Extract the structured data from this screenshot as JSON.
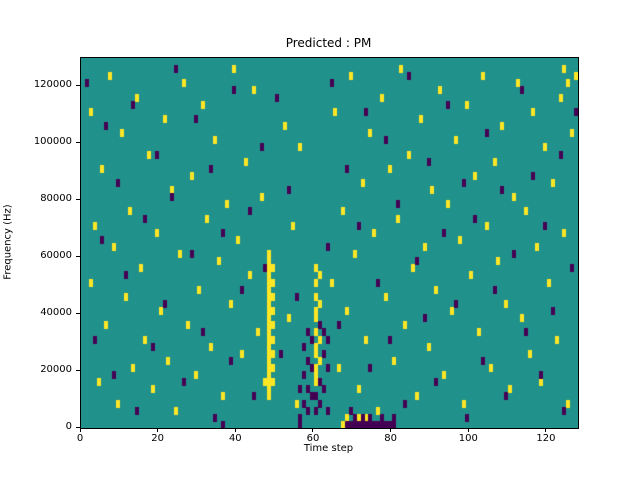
{
  "chart_data": {
    "type": "heatmap",
    "title": "Predicted : PM",
    "xlabel": "Time step",
    "ylabel": "Frequency (Hz)",
    "x_range": [
      0,
      128
    ],
    "y_range": [
      0,
      130000
    ],
    "x_ticks": [
      0,
      20,
      40,
      60,
      80,
      100,
      120
    ],
    "y_ticks": [
      0,
      20000,
      40000,
      60000,
      80000,
      100000,
      120000
    ],
    "grid": false,
    "legend": "none",
    "colors": {
      "background": "#21918c",
      "high": "#fde725",
      "low": "#440154"
    },
    "grid_cols": 128,
    "grid_rows": 52,
    "cells_high": [
      [
        2,
        44
      ],
      [
        2,
        20
      ],
      [
        3,
        28
      ],
      [
        4,
        6
      ],
      [
        5,
        36
      ],
      [
        6,
        14
      ],
      [
        7,
        49
      ],
      [
        8,
        25
      ],
      [
        9,
        3
      ],
      [
        10,
        41
      ],
      [
        11,
        18
      ],
      [
        12,
        30
      ],
      [
        13,
        8
      ],
      [
        14,
        46
      ],
      [
        15,
        22
      ],
      [
        16,
        12
      ],
      [
        17,
        38
      ],
      [
        18,
        5
      ],
      [
        19,
        27
      ],
      [
        20,
        16
      ],
      [
        21,
        43
      ],
      [
        22,
        9
      ],
      [
        23,
        33
      ],
      [
        24,
        2
      ],
      [
        25,
        24
      ],
      [
        26,
        48
      ],
      [
        27,
        14
      ],
      [
        28,
        35
      ],
      [
        29,
        7
      ],
      [
        30,
        19
      ],
      [
        31,
        45
      ],
      [
        32,
        29
      ],
      [
        33,
        11
      ],
      [
        34,
        40
      ],
      [
        35,
        23
      ],
      [
        36,
        4
      ],
      [
        37,
        31
      ],
      [
        38,
        17
      ],
      [
        39,
        50
      ],
      [
        40,
        26
      ],
      [
        41,
        10
      ],
      [
        42,
        37
      ],
      [
        43,
        21
      ],
      [
        44,
        47
      ],
      [
        45,
        13
      ],
      [
        46,
        32
      ],
      [
        47,
        6
      ],
      [
        48,
        4
      ],
      [
        48,
        5
      ],
      [
        48,
        6
      ],
      [
        48,
        7
      ],
      [
        48,
        8
      ],
      [
        48,
        9
      ],
      [
        48,
        10
      ],
      [
        48,
        11
      ],
      [
        48,
        12
      ],
      [
        48,
        13
      ],
      [
        48,
        14
      ],
      [
        48,
        15
      ],
      [
        48,
        16
      ],
      [
        48,
        17
      ],
      [
        48,
        18
      ],
      [
        48,
        19
      ],
      [
        48,
        20
      ],
      [
        48,
        21
      ],
      [
        48,
        22
      ],
      [
        48,
        23
      ],
      [
        48,
        24
      ],
      [
        49,
        6
      ],
      [
        49,
        8
      ],
      [
        49,
        10
      ],
      [
        49,
        12
      ],
      [
        49,
        14
      ],
      [
        49,
        16
      ],
      [
        49,
        18
      ],
      [
        49,
        20
      ],
      [
        49,
        22
      ],
      [
        52,
        42
      ],
      [
        53,
        15
      ],
      [
        54,
        28
      ],
      [
        55,
        3
      ],
      [
        56,
        39
      ],
      [
        60,
        6
      ],
      [
        60,
        7
      ],
      [
        60,
        8
      ],
      [
        60,
        10
      ],
      [
        60,
        11
      ],
      [
        60,
        13
      ],
      [
        60,
        15
      ],
      [
        60,
        16
      ],
      [
        60,
        18
      ],
      [
        60,
        20
      ],
      [
        60,
        22
      ],
      [
        61,
        9
      ],
      [
        61,
        12
      ],
      [
        61,
        17
      ],
      [
        61,
        21
      ],
      [
        64,
        20
      ],
      [
        65,
        44
      ],
      [
        66,
        8
      ],
      [
        67,
        30
      ],
      [
        67,
        0
      ],
      [
        68,
        16
      ],
      [
        68,
        1
      ],
      [
        69,
        49
      ],
      [
        70,
        24
      ],
      [
        71,
        5
      ],
      [
        71,
        1
      ],
      [
        72,
        34
      ],
      [
        73,
        12
      ],
      [
        73,
        1
      ],
      [
        74,
        41
      ],
      [
        75,
        27
      ],
      [
        76,
        2
      ],
      [
        77,
        46
      ],
      [
        78,
        18
      ],
      [
        79,
        36
      ],
      [
        80,
        9
      ],
      [
        81,
        29
      ],
      [
        82,
        50
      ],
      [
        83,
        14
      ],
      [
        84,
        38
      ],
      [
        85,
        22
      ],
      [
        86,
        4
      ],
      [
        87,
        43
      ],
      [
        88,
        25
      ],
      [
        89,
        11
      ],
      [
        90,
        33
      ],
      [
        91,
        19
      ],
      [
        92,
        47
      ],
      [
        93,
        7
      ],
      [
        94,
        31
      ],
      [
        95,
        16
      ],
      [
        96,
        40
      ],
      [
        97,
        26
      ],
      [
        98,
        3
      ],
      [
        99,
        45
      ],
      [
        100,
        21
      ],
      [
        101,
        35
      ],
      [
        102,
        13
      ],
      [
        103,
        49
      ],
      [
        104,
        28
      ],
      [
        105,
        8
      ],
      [
        106,
        37
      ],
      [
        107,
        23
      ],
      [
        108,
        42
      ],
      [
        109,
        17
      ],
      [
        110,
        5
      ],
      [
        111,
        32
      ],
      [
        112,
        48
      ],
      [
        113,
        15
      ],
      [
        114,
        30
      ],
      [
        115,
        10
      ],
      [
        116,
        44
      ],
      [
        117,
        25
      ],
      [
        118,
        6
      ],
      [
        119,
        39
      ],
      [
        120,
        20
      ],
      [
        121,
        34
      ],
      [
        122,
        12
      ],
      [
        123,
        46
      ],
      [
        124,
        27
      ],
      [
        124,
        50
      ],
      [
        125,
        3
      ],
      [
        125,
        48
      ],
      [
        126,
        41
      ],
      [
        127,
        49
      ]
    ],
    "cells_low": [
      [
        1,
        48
      ],
      [
        3,
        12
      ],
      [
        5,
        26
      ],
      [
        6,
        42
      ],
      [
        8,
        7
      ],
      [
        9,
        34
      ],
      [
        11,
        21
      ],
      [
        13,
        45
      ],
      [
        14,
        2
      ],
      [
        16,
        29
      ],
      [
        18,
        11
      ],
      [
        19,
        38
      ],
      [
        21,
        17
      ],
      [
        23,
        32
      ],
      [
        24,
        50
      ],
      [
        26,
        6
      ],
      [
        28,
        24
      ],
      [
        29,
        43
      ],
      [
        31,
        13
      ],
      [
        33,
        36
      ],
      [
        34,
        1
      ],
      [
        36,
        27
      ],
      [
        36,
        0
      ],
      [
        38,
        9
      ],
      [
        39,
        47
      ],
      [
        41,
        19
      ],
      [
        43,
        30
      ],
      [
        44,
        4
      ],
      [
        46,
        39
      ],
      [
        47,
        22
      ],
      [
        50,
        46
      ],
      [
        51,
        10
      ],
      [
        53,
        33
      ],
      [
        55,
        18
      ],
      [
        56,
        5
      ],
      [
        56,
        0
      ],
      [
        56,
        1
      ],
      [
        57,
        3
      ],
      [
        57,
        7
      ],
      [
        57,
        11
      ],
      [
        58,
        2
      ],
      [
        58,
        5
      ],
      [
        58,
        9
      ],
      [
        58,
        13
      ],
      [
        59,
        4
      ],
      [
        59,
        8
      ],
      [
        59,
        12
      ],
      [
        60,
        2
      ],
      [
        60,
        4
      ],
      [
        61,
        3
      ],
      [
        61,
        6
      ],
      [
        61,
        14
      ],
      [
        62,
        5
      ],
      [
        62,
        10
      ],
      [
        62,
        13
      ],
      [
        63,
        2
      ],
      [
        63,
        8
      ],
      [
        63,
        12
      ],
      [
        63,
        25
      ],
      [
        64,
        48
      ],
      [
        66,
        14
      ],
      [
        68,
        36
      ],
      [
        69,
        2
      ],
      [
        71,
        28
      ],
      [
        73,
        44
      ],
      [
        74,
        8
      ],
      [
        76,
        20
      ],
      [
        78,
        40
      ],
      [
        68,
        0
      ],
      [
        69,
        0
      ],
      [
        70,
        0
      ],
      [
        70,
        1
      ],
      [
        71,
        0
      ],
      [
        72,
        0
      ],
      [
        72,
        1
      ],
      [
        73,
        0
      ],
      [
        74,
        0
      ],
      [
        74,
        1
      ],
      [
        75,
        0
      ],
      [
        76,
        0
      ],
      [
        77,
        0
      ],
      [
        77,
        1
      ],
      [
        78,
        0
      ],
      [
        79,
        0
      ],
      [
        80,
        0
      ],
      [
        80,
        1
      ],
      [
        79,
        12
      ],
      [
        81,
        31
      ],
      [
        83,
        3
      ],
      [
        84,
        49
      ],
      [
        86,
        23
      ],
      [
        88,
        15
      ],
      [
        89,
        37
      ],
      [
        91,
        6
      ],
      [
        93,
        27
      ],
      [
        94,
        45
      ],
      [
        96,
        17
      ],
      [
        98,
        34
      ],
      [
        99,
        1
      ],
      [
        101,
        29
      ],
      [
        103,
        9
      ],
      [
        104,
        41
      ],
      [
        106,
        19
      ],
      [
        108,
        33
      ],
      [
        109,
        4
      ],
      [
        111,
        24
      ],
      [
        113,
        47
      ],
      [
        114,
        13
      ],
      [
        116,
        35
      ],
      [
        118,
        7
      ],
      [
        119,
        28
      ],
      [
        121,
        16
      ],
      [
        123,
        38
      ],
      [
        124,
        2
      ],
      [
        126,
        22
      ],
      [
        127,
        44
      ]
    ]
  }
}
